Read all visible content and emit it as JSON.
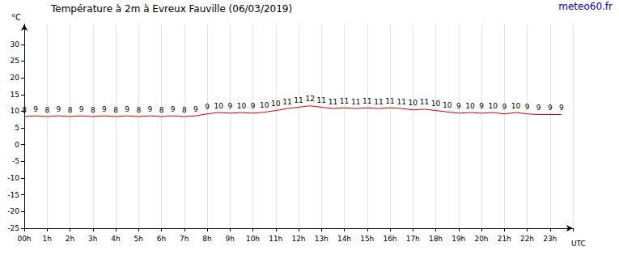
{
  "chart_data": {
    "type": "line",
    "title": "Température à 2m à Evreux Fauville (06/03/2019)",
    "annotations": [
      "meteo60.fr"
    ],
    "x_label": "UTC",
    "y_label": "°C",
    "x": [
      0,
      0.5,
      1,
      1.5,
      2,
      2.5,
      3,
      3.5,
      4,
      4.5,
      5,
      5.5,
      6,
      6.5,
      7,
      7.5,
      8,
      8.5,
      9,
      9.5,
      10,
      10.5,
      11,
      11.5,
      12,
      12.5,
      13,
      13.5,
      14,
      14.5,
      15,
      15.5,
      16,
      16.5,
      17,
      17.5,
      18,
      18.5,
      19,
      19.5,
      20,
      20.5,
      21,
      21.5,
      22,
      22.5,
      23,
      23.5
    ],
    "values": [
      8.4,
      8.6,
      8.4,
      8.6,
      8.4,
      8.6,
      8.4,
      8.6,
      8.4,
      8.6,
      8.4,
      8.6,
      8.4,
      8.6,
      8.4,
      8.6,
      9.2,
      9.6,
      9.4,
      9.6,
      9.4,
      9.7,
      10.2,
      10.8,
      11.2,
      11.6,
      11.2,
      10.8,
      11.0,
      10.8,
      11.0,
      10.8,
      11.0,
      10.8,
      10.4,
      10.6,
      10.2,
      9.8,
      9.4,
      9.6,
      9.4,
      9.6,
      9.2,
      9.6,
      9.2,
      9.0,
      9.0,
      9.0
    ],
    "value_labels": [
      "8",
      "9",
      "8",
      "9",
      "8",
      "9",
      "8",
      "9",
      "8",
      "9",
      "8",
      "9",
      "8",
      "9",
      "8",
      "9",
      "9",
      "10",
      "9",
      "10",
      "9",
      "10",
      "10",
      "11",
      "11",
      "12",
      "11",
      "11",
      "11",
      "11",
      "11",
      "11",
      "11",
      "11",
      "10",
      "11",
      "10",
      "10",
      "9",
      "10",
      "9",
      "10",
      "9",
      "10",
      "9",
      "9",
      "9",
      "9"
    ],
    "color": "#cc0000",
    "xlim": [
      0,
      24
    ],
    "xticks": [
      {
        "value": 0,
        "label": "00h"
      },
      {
        "value": 1,
        "label": "1h"
      },
      {
        "value": 2,
        "label": "2h"
      },
      {
        "value": 3,
        "label": "3h"
      },
      {
        "value": 4,
        "label": "4h"
      },
      {
        "value": 5,
        "label": "5h"
      },
      {
        "value": 6,
        "label": "6h"
      },
      {
        "value": 7,
        "label": "7h"
      },
      {
        "value": 8,
        "label": "8h"
      },
      {
        "value": 9,
        "label": "9h"
      },
      {
        "value": 10,
        "label": "10h"
      },
      {
        "value": 11,
        "label": "11h"
      },
      {
        "value": 12,
        "label": "12h"
      },
      {
        "value": 13,
        "label": "13h"
      },
      {
        "value": 14,
        "label": "14h"
      },
      {
        "value": 15,
        "label": "15h"
      },
      {
        "value": 16,
        "label": "16h"
      },
      {
        "value": 17,
        "label": "17h"
      },
      {
        "value": 18,
        "label": "18h"
      },
      {
        "value": 19,
        "label": "19h"
      },
      {
        "value": 20,
        "label": "20h"
      },
      {
        "value": 21,
        "label": "21h"
      },
      {
        "value": 22,
        "label": "22h"
      },
      {
        "value": 23,
        "label": "23h"
      }
    ],
    "ylim": [
      -25,
      36
    ],
    "yticks": [
      -25,
      -20,
      -15,
      -10,
      -5,
      0,
      5,
      10,
      15,
      20,
      25,
      30
    ],
    "grid": true,
    "data_labels": true,
    "legend": false
  }
}
